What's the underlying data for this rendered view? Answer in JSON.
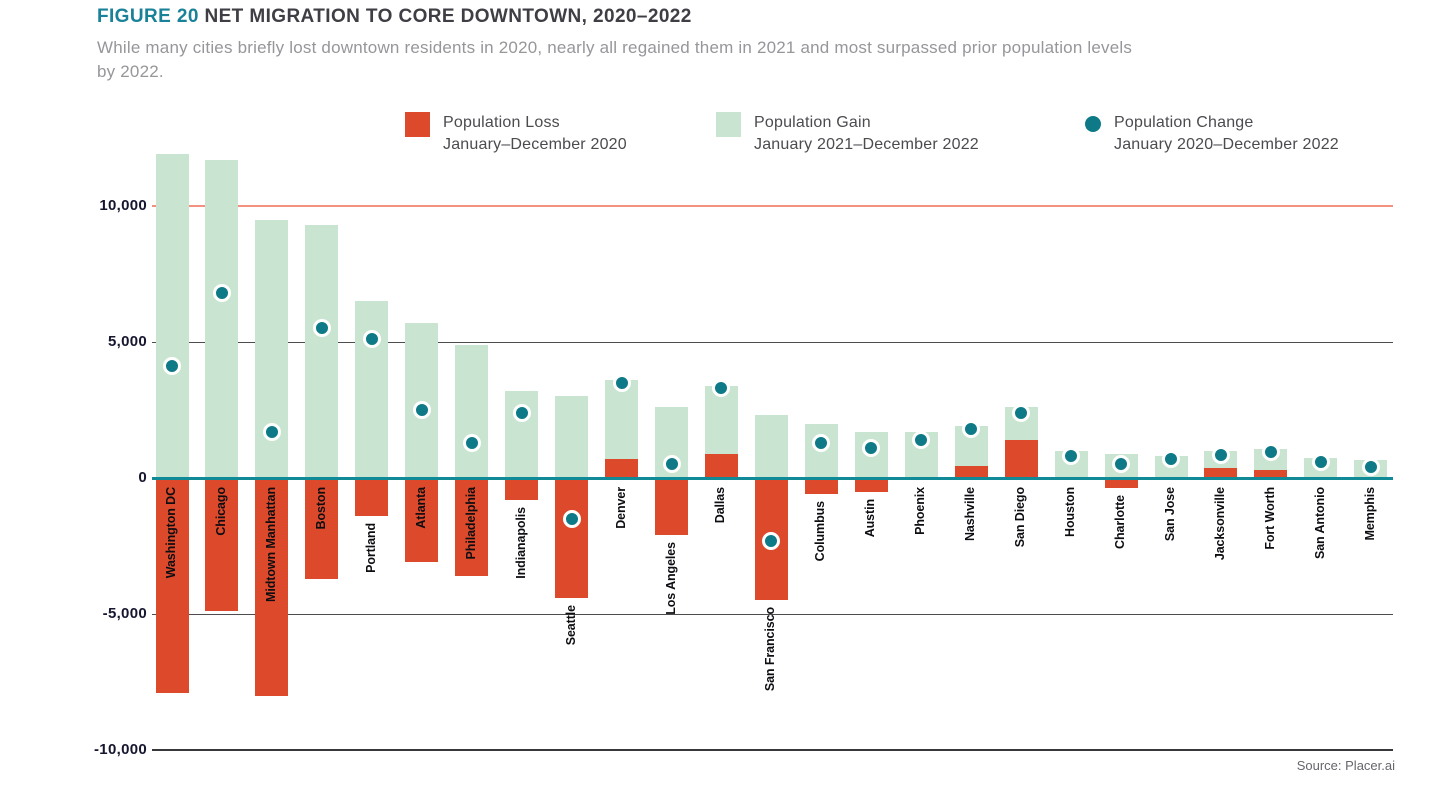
{
  "title": {
    "prefix": "FIGURE 20",
    "text": " NET MIGRATION TO CORE DOWNTOWN, 2020–2022"
  },
  "subtitle_line1": "While many cities briefly lost downtown residents in 2020, nearly all regained them in 2021 and most surpassed prior population levels",
  "subtitle_line2": "by 2022.",
  "legend": [
    {
      "label": "Population Loss",
      "sublabel": "January–December 2020",
      "swatch": "square",
      "color": "#dd4a2b"
    },
    {
      "label": "Population Gain",
      "sublabel": "January 2021–December 2022",
      "swatch": "square",
      "color": "#c9e5d2"
    },
    {
      "label": "Population Change",
      "sublabel": "January 2020–December 2022",
      "swatch": "dot",
      "color": "#0e7a87"
    }
  ],
  "source": "Source: Placer.ai",
  "colors": {
    "loss_red": "#dd4a2b",
    "gain_green": "#c9e5d2",
    "change_teal": "#0e7a87",
    "zero_line_teal": "#0f8a96",
    "grid_10000_salmon": "#f2917f",
    "grid_gray": "#4d4d4d",
    "grid_bottom_dark": "#38383c",
    "axis_label": "#16162e"
  },
  "chart_data": {
    "type": "bar",
    "title": "FIGURE 20 NET MIGRATION TO CORE DOWNTOWN, 2020–2022",
    "xlabel": "",
    "ylabel": "",
    "ylim": [
      -10000,
      12200
    ],
    "grid": "horizontal",
    "legend_position": "top",
    "ytick_values": [
      10000,
      5000,
      0,
      -5000,
      -10000
    ],
    "ytick_labels": [
      "10,000",
      "5,000",
      "0",
      "-5,000",
      "-10,000"
    ],
    "categories": [
      "Washington DC",
      "Chicago",
      "Midtown Manhattan",
      "Boston",
      "Portland",
      "Atlanta",
      "Philadelphia",
      "Indianapolis",
      "Seattle",
      "Denver",
      "Los Angeles",
      "Dallas",
      "San Francisco",
      "Columbus",
      "Austin",
      "Phoenix",
      "Nashville",
      "San Diego",
      "Houston",
      "Charlotte",
      "San Jose",
      "Jacksonville",
      "Fort Worth",
      "San Antonio",
      "Memphis"
    ],
    "series": [
      {
        "name": "Population Loss January–December 2020",
        "note": "2020 net change; negative bars drawn below zero, positive 2020 changes drawn stacked above zero",
        "values": [
          -7900,
          -4900,
          -8000,
          -3700,
          -1400,
          -3100,
          -3600,
          -800,
          -4400,
          700,
          -2100,
          900,
          -4500,
          -600,
          -500,
          0,
          450,
          1400,
          0,
          -350,
          0,
          350,
          300,
          0,
          0
        ]
      },
      {
        "name": "Population Gain January 2021–December 2022",
        "values": [
          11900,
          11700,
          9500,
          9300,
          6500,
          5700,
          4900,
          3200,
          3000,
          2900,
          2600,
          2500,
          2300,
          2000,
          1700,
          1700,
          1450,
          1200,
          1000,
          900,
          800,
          650,
          750,
          750,
          650
        ]
      },
      {
        "name": "Population Change January 2020–December 2022",
        "marker": "dot",
        "values": [
          4100,
          6800,
          1700,
          5500,
          5100,
          2500,
          1300,
          2400,
          -1500,
          3500,
          500,
          3300,
          -2300,
          1300,
          1100,
          1400,
          1800,
          2400,
          800,
          500,
          700,
          850,
          950,
          600,
          400
        ]
      }
    ]
  }
}
